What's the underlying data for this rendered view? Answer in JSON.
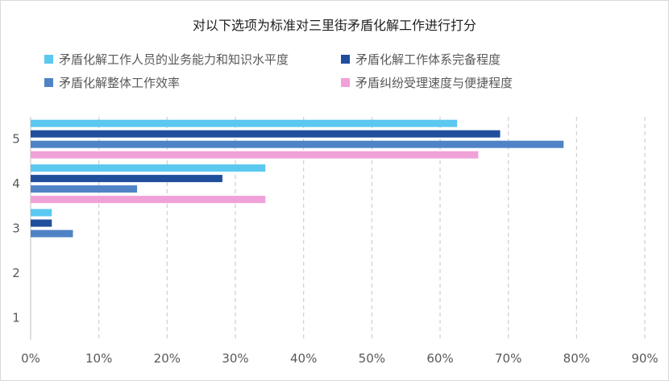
{
  "chart_data": {
    "type": "bar",
    "orientation": "horizontal",
    "title": "对以下选项为标准对三里街矛盾化解工作进行打分",
    "categories": [
      "1",
      "2",
      "3",
      "4",
      "5"
    ],
    "series": [
      {
        "name": "矛盾化解工作人员的业务能力和知识水平度",
        "color": "#5bc8f0",
        "values": [
          0,
          0,
          3.1,
          34.4,
          62.5
        ]
      },
      {
        "name": "矛盾化解工作体系完备程度",
        "color": "#1f4e9c",
        "values": [
          0,
          0,
          3.1,
          28.1,
          68.8
        ]
      },
      {
        "name": "矛盾化解整体工作效率",
        "color": "#4f83c6",
        "values": [
          0,
          0,
          6.2,
          15.6,
          78.1
        ]
      },
      {
        "name": "矛盾纠纷受理速度与便捷程度",
        "color": "#f0a1d8",
        "values": [
          0,
          0,
          0,
          34.4,
          65.6
        ]
      }
    ],
    "xlim": [
      0,
      90
    ],
    "xticks": [
      "0%",
      "10%",
      "20%",
      "30%",
      "40%",
      "50%",
      "60%",
      "70%",
      "80%",
      "90%"
    ],
    "grid": true,
    "legend_position": "top"
  }
}
